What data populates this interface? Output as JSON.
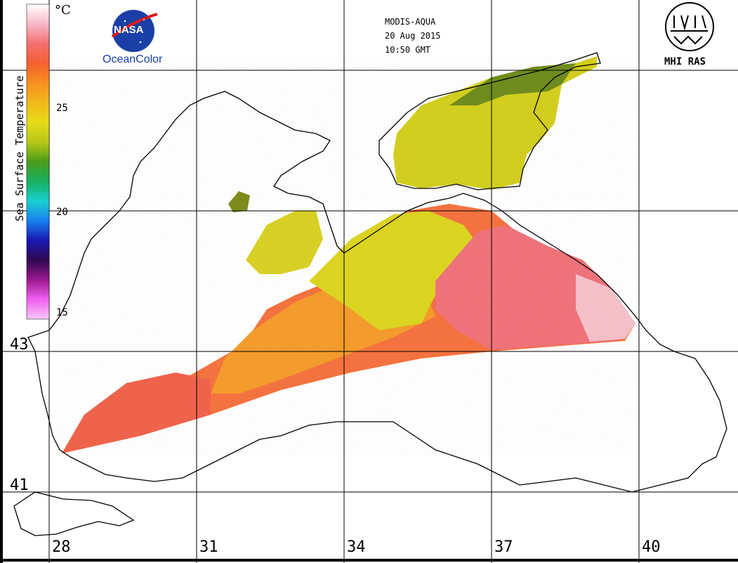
{
  "header": {
    "satellite": "MODIS-AQUA",
    "date": "20 Aug 2015",
    "time": "10:50 GMT"
  },
  "logos": {
    "nasa_text": "NASA",
    "oceancolor": "OceanColor",
    "mhi_text": "MHI RAS"
  },
  "colorbar": {
    "title": "Sea Surface Temperature",
    "unit": "°C",
    "ticks": [
      "25",
      "20",
      "15"
    ],
    "colors": [
      "#ffffff",
      "#f8b8c8",
      "#f47070",
      "#f66030",
      "#f79020",
      "#f0b81a",
      "#e6dc18",
      "#b8c818",
      "#4a9c18",
      "#18b060",
      "#18d0d0",
      "#1880f0",
      "#1818b0",
      "#300850",
      "#9c1890",
      "#f060f0",
      "#f8c8f8"
    ]
  },
  "grid": {
    "longitudes": [
      "28",
      "31",
      "34",
      "37",
      "40"
    ],
    "latitudes": [
      "43",
      "41"
    ]
  }
}
